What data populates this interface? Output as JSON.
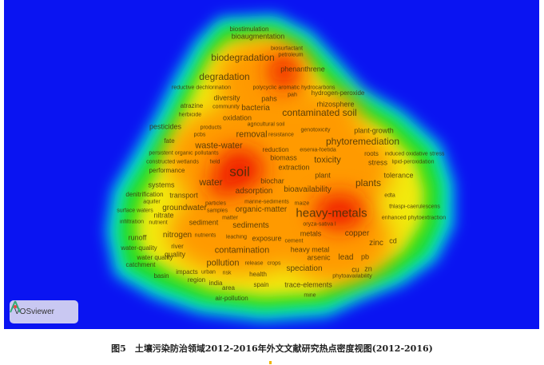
{
  "figure": {
    "caption": "图5　土壤污染防治领域2012-2016年外文文献研究热点密度视图(2012-2016)"
  },
  "logo": {
    "label": "VOSviewer",
    "icon": "vosviewer-logo-icon"
  },
  "colors": {
    "background": "#0a14f2",
    "low": "#00e5e5",
    "mid": "#22dd22",
    "high": "#ffee00",
    "higher": "#ff9900",
    "peak": "#ee1100"
  },
  "terms": [
    "biostimulation",
    "bioaugmentation",
    "biosurfactant",
    "petroleum",
    "biodegradation",
    "phenanthrene",
    "degradation",
    "reductive dechlorination",
    "polycyclic aromatic hydrocarbons",
    "pah",
    "hydrogen-peroxide",
    "diversity",
    "pahs",
    "atrazine",
    "community",
    "bacteria",
    "rhizosphere",
    "contaminated soil",
    "herbicide",
    "oxidation",
    "agricultural soil",
    "pesticides",
    "products",
    "pcbs",
    "removal",
    "resistance",
    "genotoxicity",
    "plant-growth",
    "fate",
    "phytoremediation",
    "waste-water",
    "persistent organic pollutants",
    "reduction",
    "eisenia-foetida",
    "roots",
    "induced oxidative stress",
    "biomass",
    "toxicity",
    "stress",
    "lipid-peroxidation",
    "constructed wetlands",
    "field",
    "extraction",
    "performance",
    "soil",
    "plant",
    "tolerance",
    "biochar",
    "water",
    "plants",
    "systems",
    "adsorption",
    "bioavailability",
    "denitrification",
    "transport",
    "edta",
    "aquifer",
    "marine-sediments",
    "maize",
    "surface waters",
    "groundwater",
    "particles",
    "samples",
    "organic-matter",
    "thlaspi-caerulescens",
    "heavy-metals",
    "nitrate",
    "matter",
    "oryza-sativa l",
    "enhanced phytoextraction",
    "infiltration",
    "nutrient",
    "sediment",
    "sediments",
    "metals",
    "copper",
    "cd",
    "runoff",
    "nitrogen",
    "nutrients",
    "leaching",
    "exposure",
    "cement",
    "zinc",
    "water-quality",
    "river",
    "contamination",
    "heavy metal",
    "arsenic",
    "lead",
    "pb",
    "quality",
    "water quality",
    "catchment",
    "pollution",
    "release",
    "crops",
    "speciation",
    "cu",
    "zn",
    "basin",
    "impacts",
    "urban",
    "risk",
    "health",
    "phytoavailability",
    "region",
    "india",
    "spain",
    "trace-elements",
    "area",
    "mine",
    "air-pollution"
  ]
}
